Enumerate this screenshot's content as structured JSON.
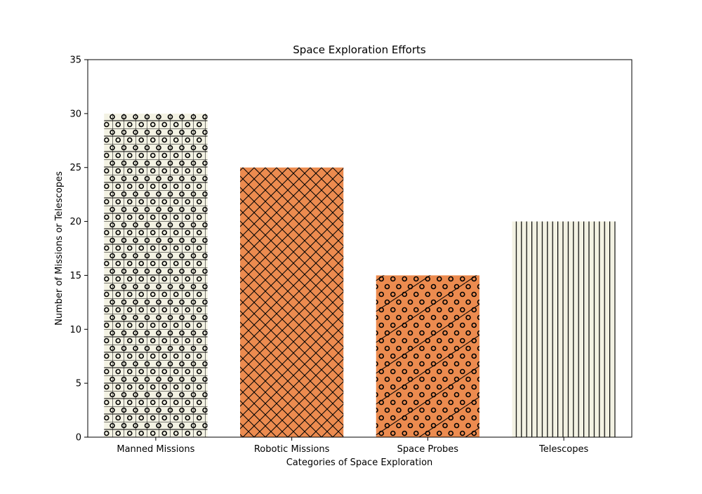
{
  "chart_data": {
    "type": "bar",
    "title": "Space Exploration Efforts",
    "xlabel": "Categories of Space Exploration",
    "ylabel": "Number of Missions or Telescopes",
    "categories": [
      "Manned Missions",
      "Robotic Missions",
      "Space Probes",
      "Telescopes"
    ],
    "values": [
      30,
      25,
      15,
      20
    ],
    "ylim": [
      0,
      35
    ],
    "yticks": [
      0,
      5,
      10,
      15,
      20,
      25,
      30,
      35
    ],
    "grid": false,
    "colors": [
      "#f3f2e3",
      "#ec8b4f",
      "#ec8b4f",
      "#f3f2e3"
    ],
    "hatches": [
      "grid-circles",
      "crosshatch",
      "diagonal-circles",
      "vertical-lines"
    ],
    "edge_color": "#000000"
  }
}
